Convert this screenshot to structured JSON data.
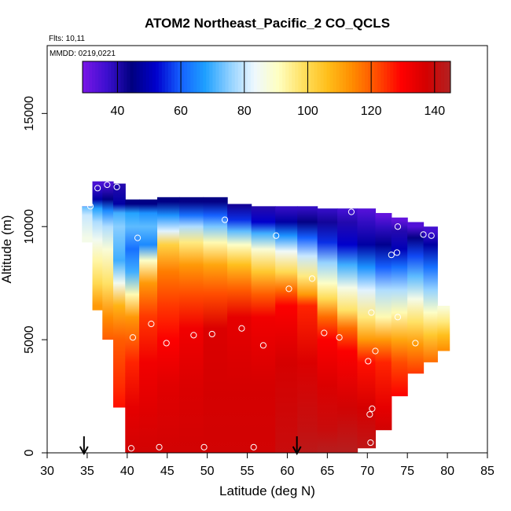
{
  "chart_data": {
    "type": "heatmap",
    "title": "ATOM2 Northeast_Pacific_2 CO_QCLS",
    "flights_label": "Flts: 10,11",
    "dates_label": "MMDD: 0219,0221",
    "xlabel": "Latitude (deg N)",
    "ylabel": "Altitude (m)",
    "xlim": [
      30,
      85
    ],
    "ylim": [
      0,
      18000
    ],
    "x_ticks": [
      "30",
      "35",
      "40",
      "45",
      "50",
      "55",
      "60",
      "65",
      "70",
      "75",
      "80",
      "85"
    ],
    "y_ticks": [
      "0",
      "5000",
      "10000",
      "15000"
    ],
    "colorbar": {
      "range": [
        29,
        145
      ],
      "ticks": [
        "40",
        "60",
        "80",
        "100",
        "120",
        "140"
      ],
      "colors": [
        "#7a16e6",
        "#3c0fcf",
        "#000080",
        "#0000cd",
        "#1560ff",
        "#1ea0ff",
        "#8fd0ff",
        "#eef8ff",
        "#ffffc0",
        "#ffe060",
        "#ffbe1a",
        "#ff8c00",
        "#ff4d00",
        "#ff0000",
        "#d40000",
        "#b22222"
      ]
    },
    "curtain_columns": [
      {
        "lat": 35.0,
        "top": 10900,
        "bottom": 9300,
        "grad": [
          [
            11800,
            32
          ],
          [
            11000,
            72
          ],
          [
            10500,
            80
          ],
          [
            9500,
            86
          ]
        ]
      },
      {
        "lat": 36.3,
        "top": 12000,
        "bottom": 6300,
        "grad": [
          [
            11900,
            35
          ],
          [
            11200,
            48
          ],
          [
            10800,
            68
          ],
          [
            10200,
            78
          ],
          [
            9400,
            85
          ],
          [
            8500,
            93
          ],
          [
            7500,
            100
          ],
          [
            6500,
            112
          ]
        ]
      },
      {
        "lat": 37.5,
        "top": 12000,
        "bottom": 5000,
        "grad": [
          [
            11900,
            35
          ],
          [
            11200,
            45
          ],
          [
            10700,
            65
          ],
          [
            10000,
            78
          ],
          [
            9000,
            88
          ],
          [
            7500,
            98
          ],
          [
            6000,
            114
          ],
          [
            5000,
            120
          ]
        ]
      },
      {
        "lat": 39.0,
        "top": 11900,
        "bottom": 2000,
        "grad": [
          [
            11800,
            40
          ],
          [
            11000,
            48
          ],
          [
            10600,
            70
          ],
          [
            10000,
            75
          ],
          [
            8500,
            70
          ],
          [
            7500,
            85
          ],
          [
            6500,
            108
          ],
          [
            5000,
            120
          ],
          [
            3000,
            125
          ],
          [
            2000,
            128
          ]
        ]
      },
      {
        "lat": 40.5,
        "top": 11200,
        "bottom": 0,
        "grad": [
          [
            11000,
            45
          ],
          [
            10600,
            68
          ],
          [
            10000,
            72
          ],
          [
            9000,
            62
          ],
          [
            8000,
            70
          ],
          [
            7000,
            92
          ],
          [
            6000,
            112
          ],
          [
            4000,
            126
          ],
          [
            2000,
            134
          ],
          [
            0,
            138
          ]
        ]
      },
      {
        "lat": 42.5,
        "top": 11200,
        "bottom": 0,
        "grad": [
          [
            11000,
            45
          ],
          [
            10600,
            66
          ],
          [
            10000,
            72
          ],
          [
            9200,
            65
          ],
          [
            8500,
            90
          ],
          [
            7500,
            112
          ],
          [
            6000,
            124
          ],
          [
            4000,
            132
          ],
          [
            2000,
            135
          ],
          [
            0,
            138
          ]
        ]
      },
      {
        "lat": 45.0,
        "top": 11300,
        "bottom": 0,
        "grad": [
          [
            11100,
            45
          ],
          [
            10500,
            66
          ],
          [
            9800,
            82
          ],
          [
            9200,
            102
          ],
          [
            8000,
            116
          ],
          [
            6500,
            124
          ],
          [
            5000,
            130
          ],
          [
            3000,
            135
          ],
          [
            0,
            138
          ]
        ]
      },
      {
        "lat": 48.0,
        "top": 11300,
        "bottom": 0,
        "grad": [
          [
            11100,
            44
          ],
          [
            10500,
            62
          ],
          [
            10000,
            78
          ],
          [
            9300,
            96
          ],
          [
            8300,
            112
          ],
          [
            7000,
            122
          ],
          [
            5500,
            132
          ],
          [
            3000,
            136
          ],
          [
            0,
            138
          ]
        ]
      },
      {
        "lat": 51.0,
        "top": 11300,
        "bottom": 0,
        "grad": [
          [
            11100,
            44
          ],
          [
            10500,
            60
          ],
          [
            10000,
            74
          ],
          [
            9300,
            92
          ],
          [
            8300,
            110
          ],
          [
            7000,
            122
          ],
          [
            5500,
            136
          ],
          [
            3000,
            137
          ],
          [
            0,
            138
          ]
        ]
      },
      {
        "lat": 54.0,
        "top": 11000,
        "bottom": 0,
        "grad": [
          [
            10900,
            42
          ],
          [
            10300,
            56
          ],
          [
            9800,
            72
          ],
          [
            9200,
            90
          ],
          [
            8300,
            106
          ],
          [
            7200,
            120
          ],
          [
            6000,
            134
          ],
          [
            3000,
            137
          ],
          [
            0,
            138
          ]
        ]
      },
      {
        "lat": 57.0,
        "top": 10900,
        "bottom": 0,
        "grad": [
          [
            10800,
            40
          ],
          [
            10200,
            52
          ],
          [
            9700,
            70
          ],
          [
            9000,
            88
          ],
          [
            8000,
            104
          ],
          [
            7000,
            120
          ],
          [
            6000,
            132
          ],
          [
            3000,
            137
          ],
          [
            0,
            138
          ]
        ]
      },
      {
        "lat": 60.0,
        "top": 10900,
        "bottom": 0,
        "grad": [
          [
            10800,
            38
          ],
          [
            10200,
            48
          ],
          [
            9600,
            66
          ],
          [
            8900,
            84
          ],
          [
            8000,
            100
          ],
          [
            7200,
            118
          ],
          [
            6500,
            130
          ],
          [
            4000,
            137
          ],
          [
            0,
            140
          ]
        ]
      },
      {
        "lat": 62.5,
        "top": 10900,
        "bottom": 0,
        "grad": [
          [
            10800,
            38
          ],
          [
            10200,
            44
          ],
          [
            9500,
            60
          ],
          [
            8700,
            80
          ],
          [
            7800,
            96
          ],
          [
            7000,
            112
          ],
          [
            6500,
            126
          ],
          [
            4000,
            136
          ],
          [
            1000,
            141
          ],
          [
            0,
            143
          ]
        ]
      },
      {
        "lat": 65.0,
        "top": 10800,
        "bottom": 0,
        "grad": [
          [
            10700,
            38
          ],
          [
            10200,
            42
          ],
          [
            9300,
            56
          ],
          [
            8400,
            76
          ],
          [
            7500,
            90
          ],
          [
            6800,
            100
          ],
          [
            6000,
            118
          ],
          [
            5000,
            130
          ],
          [
            3000,
            136
          ],
          [
            1000,
            140
          ],
          [
            0,
            144
          ]
        ]
      },
      {
        "lat": 67.5,
        "top": 10800,
        "bottom": 0,
        "grad": [
          [
            10700,
            36
          ],
          [
            10200,
            40
          ],
          [
            9200,
            52
          ],
          [
            8300,
            70
          ],
          [
            7300,
            86
          ],
          [
            6300,
            98
          ],
          [
            5500,
            118
          ],
          [
            4500,
            130
          ],
          [
            2000,
            138
          ],
          [
            0,
            144
          ]
        ]
      },
      {
        "lat": 70.0,
        "top": 10800,
        "bottom": 200,
        "grad": [
          [
            10700,
            34
          ],
          [
            10200,
            38
          ],
          [
            9200,
            48
          ],
          [
            8200,
            66
          ],
          [
            7200,
            82
          ],
          [
            6000,
            96
          ],
          [
            5000,
            112
          ],
          [
            4000,
            128
          ],
          [
            2000,
            137
          ],
          [
            200,
            142
          ]
        ]
      },
      {
        "lat": 72.0,
        "top": 10600,
        "bottom": 1000,
        "grad": [
          [
            10500,
            32
          ],
          [
            10000,
            38
          ],
          [
            9200,
            46
          ],
          [
            8200,
            60
          ],
          [
            7200,
            78
          ],
          [
            6000,
            92
          ],
          [
            5000,
            112
          ],
          [
            4000,
            126
          ],
          [
            2000,
            134
          ],
          [
            1000,
            138
          ]
        ]
      },
      {
        "lat": 74.0,
        "top": 10400,
        "bottom": 2500,
        "grad": [
          [
            10300,
            32
          ],
          [
            9800,
            40
          ],
          [
            9000,
            50
          ],
          [
            8200,
            62
          ],
          [
            7200,
            78
          ],
          [
            6200,
            92
          ],
          [
            5000,
            110
          ],
          [
            4000,
            122
          ],
          [
            2500,
            130
          ]
        ]
      },
      {
        "lat": 76.0,
        "top": 10200,
        "bottom": 3500,
        "grad": [
          [
            10000,
            34
          ],
          [
            9500,
            44
          ],
          [
            8700,
            58
          ],
          [
            7800,
            72
          ],
          [
            6800,
            86
          ],
          [
            5800,
            98
          ],
          [
            4800,
            112
          ],
          [
            3500,
            124
          ]
        ]
      },
      {
        "lat": 78.0,
        "top": 10000,
        "bottom": 4000,
        "grad": [
          [
            9800,
            36
          ],
          [
            9200,
            48
          ],
          [
            8200,
            62
          ],
          [
            7200,
            76
          ],
          [
            6200,
            90
          ],
          [
            5200,
            104
          ],
          [
            4000,
            118
          ]
        ]
      },
      {
        "lat": 79.5,
        "top": 6500,
        "bottom": 4500,
        "grad": [
          [
            6400,
            88
          ],
          [
            5800,
            96
          ],
          [
            5200,
            106
          ],
          [
            4500,
            114
          ]
        ]
      }
    ],
    "sample_points": [
      [
        36.3,
        11700
      ],
      [
        37.5,
        11850
      ],
      [
        38.7,
        11750
      ],
      [
        35.4,
        10900
      ],
      [
        52.2,
        10300
      ],
      [
        68.0,
        10650
      ],
      [
        73.8,
        10000
      ],
      [
        77.0,
        9650
      ],
      [
        78.0,
        9600
      ],
      [
        41.3,
        9500
      ],
      [
        58.6,
        9600
      ],
      [
        73.0,
        8750
      ],
      [
        73.7,
        8850
      ],
      [
        63.1,
        7700
      ],
      [
        60.2,
        7250
      ],
      [
        70.5,
        6200
      ],
      [
        73.8,
        6000
      ],
      [
        43.0,
        5700
      ],
      [
        54.3,
        5500
      ],
      [
        64.6,
        5300
      ],
      [
        40.7,
        5100
      ],
      [
        48.3,
        5200
      ],
      [
        50.6,
        5250
      ],
      [
        66.5,
        5100
      ],
      [
        44.9,
        4850
      ],
      [
        57.0,
        4750
      ],
      [
        76.0,
        4850
      ],
      [
        71.0,
        4500
      ],
      [
        70.1,
        4050
      ],
      [
        70.6,
        1950
      ],
      [
        70.3,
        1700
      ],
      [
        40.5,
        200
      ],
      [
        44.0,
        250
      ],
      [
        49.6,
        250
      ],
      [
        55.8,
        250
      ],
      [
        70.4,
        450
      ],
      [
        71.5,
        500
      ]
    ],
    "arrows": [
      {
        "lat": 34.6,
        "label": "down"
      },
      {
        "lat": 61.2,
        "label": "down"
      }
    ]
  }
}
